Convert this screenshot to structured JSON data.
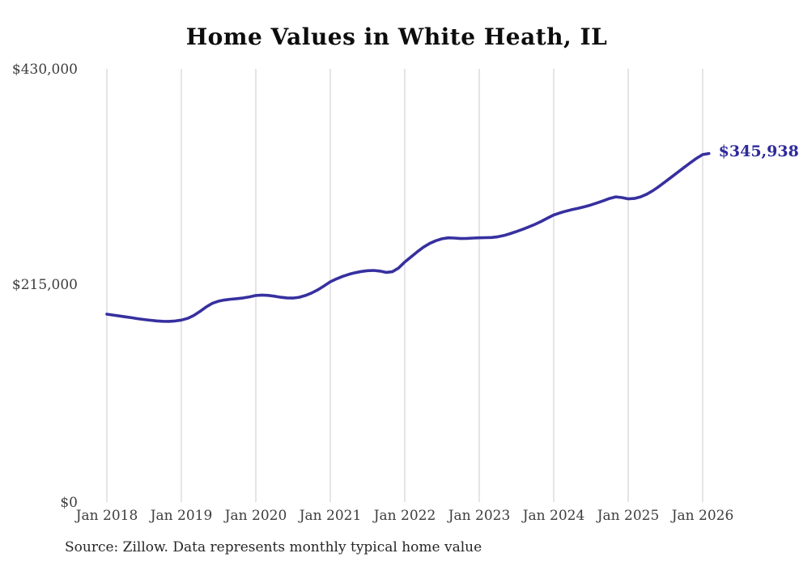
{
  "source_note": "Source: Zillow. Data represents monthly typical home value",
  "annotation": {
    "end_value_label": "$345,938"
  },
  "colors": {
    "line": "#37309f",
    "grid": "#cbcbcb",
    "annotation": "#2e2a9c",
    "axis_text": "#3d3d3d"
  },
  "chart_data": {
    "type": "line",
    "title": "Home Values in White Heath, IL",
    "xlabel": "",
    "ylabel": "",
    "ylim": [
      0,
      430000
    ],
    "grid": "vertical-only",
    "legend_position": "none",
    "x_tick_labels": [
      "Jan 2018",
      "Jan 2019",
      "Jan 2020",
      "Jan 2021",
      "Jan 2022",
      "Jan 2023",
      "Jan 2024",
      "Jan 2025",
      "Jan 2026"
    ],
    "y_tick_labels": [
      "$430,000",
      "$215,000",
      "$0"
    ],
    "x_start": "Jan 2018",
    "x_end": "Feb 2026",
    "x_interval": "monthly",
    "end_value": 345938,
    "series": [
      {
        "name": "Typical home value (USD)",
        "values": [
          186500,
          185600,
          184700,
          183800,
          182900,
          182000,
          181200,
          180400,
          179800,
          179400,
          179300,
          179700,
          180600,
          182300,
          185200,
          189200,
          193600,
          197200,
          199400,
          200600,
          201300,
          201900,
          202600,
          203700,
          205000,
          205400,
          205100,
          204300,
          203300,
          202600,
          202500,
          203300,
          205000,
          207500,
          210700,
          214500,
          218600,
          221500,
          224000,
          226000,
          227600,
          228800,
          229600,
          229900,
          229200,
          227900,
          228600,
          232200,
          238200,
          243300,
          248300,
          252900,
          256600,
          259400,
          261300,
          262300,
          262000,
          261500,
          261700,
          262000,
          262300,
          262400,
          262600,
          263300,
          264600,
          266400,
          268500,
          270700,
          273100,
          275700,
          278600,
          281800,
          284900,
          287000,
          288800,
          290300,
          291700,
          293200,
          294900,
          296900,
          299100,
          301300,
          302900,
          302200,
          300900,
          301300,
          302900,
          305600,
          309200,
          313400,
          318000,
          322700,
          327400,
          332100,
          336700,
          341100,
          344900,
          345938
        ]
      }
    ]
  }
}
